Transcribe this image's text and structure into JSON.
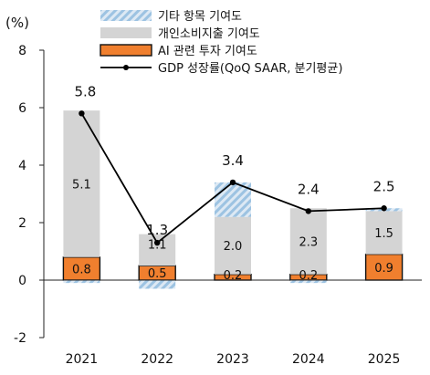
{
  "chart_data": {
    "type": "bar",
    "unit_label": "(%)",
    "categories": [
      "2021",
      "2022",
      "2023",
      "2024",
      "2025"
    ],
    "ylim": [
      -2,
      8
    ],
    "yticks": [
      -2,
      0,
      2,
      4,
      6,
      8
    ],
    "grid": false,
    "legend_position": "top-right",
    "series": [
      {
        "name": "AI 관련 투자 기여도",
        "kind": "stacked-bar",
        "color": "#f07f2e",
        "values": [
          0.8,
          0.5,
          0.2,
          0.2,
          0.9
        ],
        "labels": [
          "0.8",
          "0.5",
          "0.2",
          "0.2",
          "0.9"
        ]
      },
      {
        "name": "개인소비지출 기여도",
        "kind": "stacked-bar",
        "color": "#d4d4d4",
        "values": [
          5.1,
          1.1,
          2.0,
          2.3,
          1.5
        ],
        "labels": [
          "5.1",
          "1.1",
          "2.0",
          "2.3",
          "1.5"
        ]
      },
      {
        "name": "기타 항목 기여도",
        "kind": "stacked-bar",
        "color": "#a9cbe6",
        "pattern": "hatch",
        "values": [
          -0.1,
          -0.3,
          1.2,
          -0.1,
          0.1
        ]
      },
      {
        "name": "GDP 성장률(QoQ SAAR, 분기평균)",
        "kind": "line",
        "color": "#000000",
        "values": [
          5.8,
          1.3,
          3.4,
          2.4,
          2.5
        ],
        "labels": [
          "5.8",
          "1.3",
          "3.4",
          "2.4",
          "2.5"
        ]
      }
    ]
  }
}
